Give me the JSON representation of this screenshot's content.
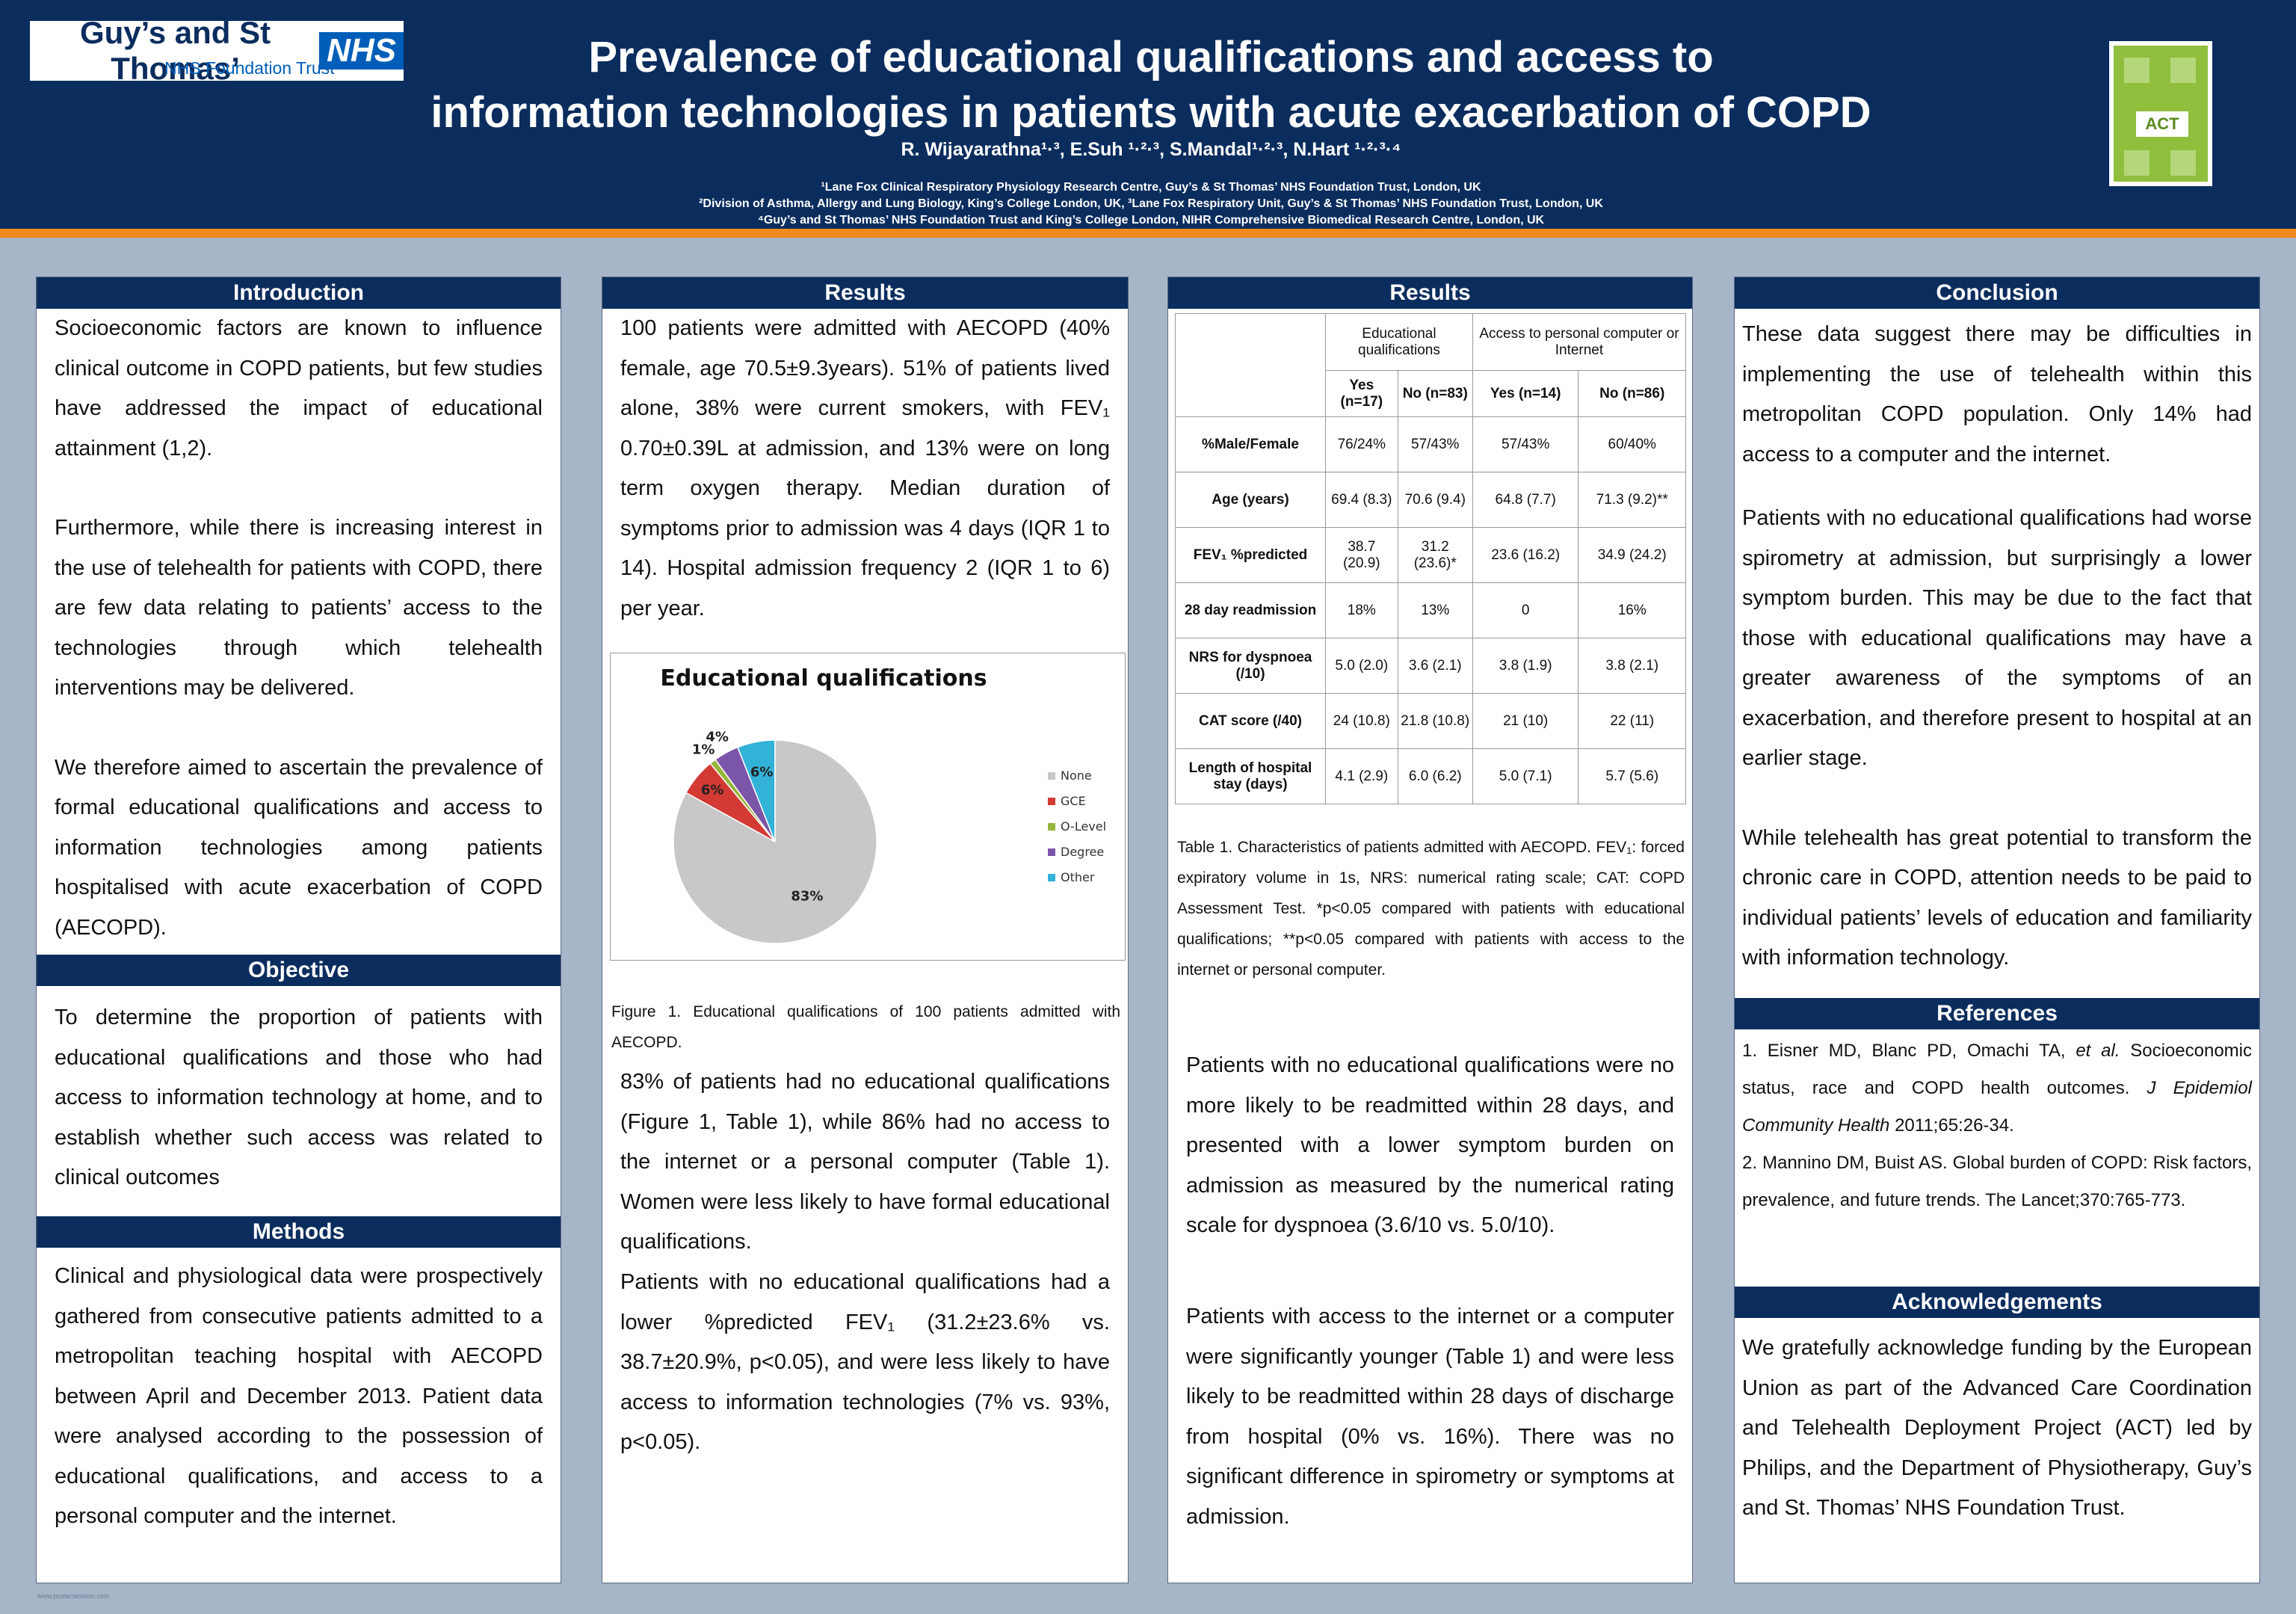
{
  "header": {
    "logo_trust_name": "Guy’s and St Thomas’",
    "logo_nhs": "NHS",
    "logo_subtitle": "NHS Foundation Trust",
    "logo_act": "ACT",
    "title_line1": "Prevalence of educational qualifications and access to",
    "title_line2": "information technologies in patients with acute exacerbation of COPD",
    "authors": "R. Wijayarathna¹·³, E.Suh ¹·²·³, S.Mandal¹·²·³, N.Hart ¹·²·³·⁴",
    "affiliations": [
      "¹Lane Fox Clinical Respiratory Physiology Research Centre, Guy’s & St Thomas’ NHS Foundation Trust, London, UK",
      "²Division of Asthma, Allergy and Lung Biology, King’s College London, UK, ³Lane Fox Respiratory Unit, Guy’s & St Thomas’ NHS Foundation Trust, London, UK",
      "⁴Guy’s and St Thomas’ NHS Foundation Trust and King’s College London, NIHR Comprehensive Biomedical Research Centre, London, UK"
    ]
  },
  "introduction": {
    "heading": "Introduction",
    "p1": "Socioeconomic factors are known to influence clinical outcome in COPD patients, but few studies have addressed the impact of educational attainment (1,2).",
    "p2": "Furthermore, while there is increasing interest in the use of telehealth for patients with COPD, there are few data relating to patients’ access to the technologies through which telehealth interventions may be delivered.",
    "p3": "We therefore aimed to ascertain the prevalence of formal educational qualifications and access to information technologies among patients hospitalised with acute exacerbation of COPD (AECOPD)."
  },
  "objective": {
    "heading": "Objective",
    "p1": "To determine the proportion of patients with educational qualifications and those who had access to information technology at home, and to establish whether such access was related to clinical outcomes"
  },
  "methods": {
    "heading": "Methods",
    "p1": "Clinical and physiological data were prospectively gathered from consecutive patients admitted to a metropolitan teaching hospital with AECOPD between April and December 2013. Patient data were analysed according to the possession of educational qualifications, and access to a personal computer and the internet."
  },
  "results1": {
    "heading": "Results",
    "p1": "100 patients were admitted with AECOPD (40% female, age 70.5±9.3years). 51% of patients lived alone, 38% were current smokers, with FEV₁ 0.70±0.39L at admission, and 13% were on long term oxygen therapy. Median duration of symptoms prior to admission was 4 days (IQR 1 to 14). Hospital admission frequency 2 (IQR 1 to 6) per year.",
    "figure_caption": "Figure 1. Educational qualifications of 100 patients admitted with AECOPD.",
    "p2": "83% of patients had no educational qualifications (Figure 1, Table 1), while 86% had no access to the internet or a personal computer (Table 1). Women were less likely to have formal educational qualifications.",
    "p3": "Patients with no educational qualifications had a lower %predicted FEV₁ (31.2±23.6% vs. 38.7±20.9%, p<0.05), and were less likely to have access to information technologies (7% vs. 93%, p<0.05)."
  },
  "chart_data": {
    "type": "pie",
    "title": "Educational qualifications",
    "categories": [
      "None",
      "GCE",
      "O-Level",
      "Degree",
      "Other"
    ],
    "values": [
      83,
      6,
      1,
      4,
      6
    ],
    "labels": [
      "83%",
      "6%",
      "1%",
      "4%",
      "6%"
    ],
    "colors": [
      "#c8c8c8",
      "#d23a33",
      "#96b63a",
      "#7b55a8",
      "#33b2d8"
    ],
    "legend_position": "right"
  },
  "results2": {
    "heading": "Results",
    "table": {
      "group_headers": [
        "Educational qualifications",
        "Access to personal computer or Internet"
      ],
      "sub_headers": [
        "Yes (n=17)",
        "No (n=83)",
        "Yes (n=14)",
        "No (n=86)"
      ],
      "rows": [
        {
          "label": "%Male/Female",
          "cells": [
            "76/24%",
            "57/43%",
            "57/43%",
            "60/40%"
          ]
        },
        {
          "label": "Age (years)",
          "cells": [
            "69.4 (8.3)",
            "70.6 (9.4)",
            "64.8 (7.7)",
            "71.3 (9.2)**"
          ]
        },
        {
          "label": "FEV₁ %predicted",
          "cells": [
            "38.7 (20.9)",
            "31.2 (23.6)*",
            "23.6 (16.2)",
            "34.9 (24.2)"
          ]
        },
        {
          "label": "28 day readmission",
          "cells": [
            "18%",
            "13%",
            "0",
            "16%"
          ]
        },
        {
          "label": "NRS for dyspnoea (/10)",
          "cells": [
            "5.0 (2.0)",
            "3.6 (2.1)",
            "3.8 (1.9)",
            "3.8 (2.1)"
          ]
        },
        {
          "label": "CAT score (/40)",
          "cells": [
            "24 (10.8)",
            "21.8 (10.8)",
            "21 (10)",
            "22 (11)"
          ]
        },
        {
          "label": "Length of hospital stay (days)",
          "cells": [
            "4.1 (2.9)",
            "6.0 (6.2)",
            "5.0 (7.1)",
            "5.7 (5.6)"
          ]
        }
      ]
    },
    "table_caption": "Table 1. Characteristics of patients admitted with AECOPD. FEV₁: forced expiratory volume in 1s, NRS: numerical rating scale; CAT: COPD Assessment Test. *p<0.05 compared with patients with educational qualifications; **p<0.05 compared with patients with access to the internet or personal computer.",
    "p1": "Patients with no educational qualifications were no more likely to be readmitted within 28 days, and presented with a lower symptom burden on admission as measured by the numerical rating scale for dyspnoea (3.6/10 vs. 5.0/10).",
    "p2": "Patients with access to the internet or a computer were significantly younger (Table 1) and were less likely to be readmitted within 28 days of discharge from hospital (0% vs. 16%). There was no significant difference in spirometry or symptoms at admission."
  },
  "conclusion": {
    "heading": "Conclusion",
    "p1": "These data suggest there may be difficulties in implementing the use of telehealth within this metropolitan COPD population. Only 14% had access to a computer and the internet.",
    "p2": "Patients with no educational qualifications had worse spirometry at admission, but surprisingly a lower symptom burden. This may be due to the fact that those with educational qualifications may have a greater awareness of the symptoms of an exacerbation, and therefore present to hospital at an earlier stage.",
    "p3": "While telehealth has great potential to transform the chronic care in COPD, attention needs to be paid to individual patients’ levels of education and familiarity with information technology."
  },
  "references": {
    "heading": "References",
    "ref1_text": "1.    Eisner MD, Blanc PD, Omachi TA, ",
    "ref1_etal": "et al.",
    "ref1_rest": " Socioeconomic status, race and COPD health outcomes. ",
    "ref1_journal": "J Epidemiol Community Health",
    "ref1_end": " 2011;65:26-34.",
    "ref2": "2.    Mannino DM, Buist AS. Global burden of COPD: Risk factors, prevalence, and future trends. The Lancet;370:765-773."
  },
  "acknowledgements": {
    "heading": "Acknowledgements",
    "p1": "We gratefully acknowledge funding by the European Union as part of the Advanced Care Coordination and Telehealth Deployment Project (ACT) led by Philips, and the Department of Physiotherapy, Guy’s and St. Thomas’ NHS Foundation Trust."
  },
  "footer": {
    "note": "www.postersession.com"
  }
}
